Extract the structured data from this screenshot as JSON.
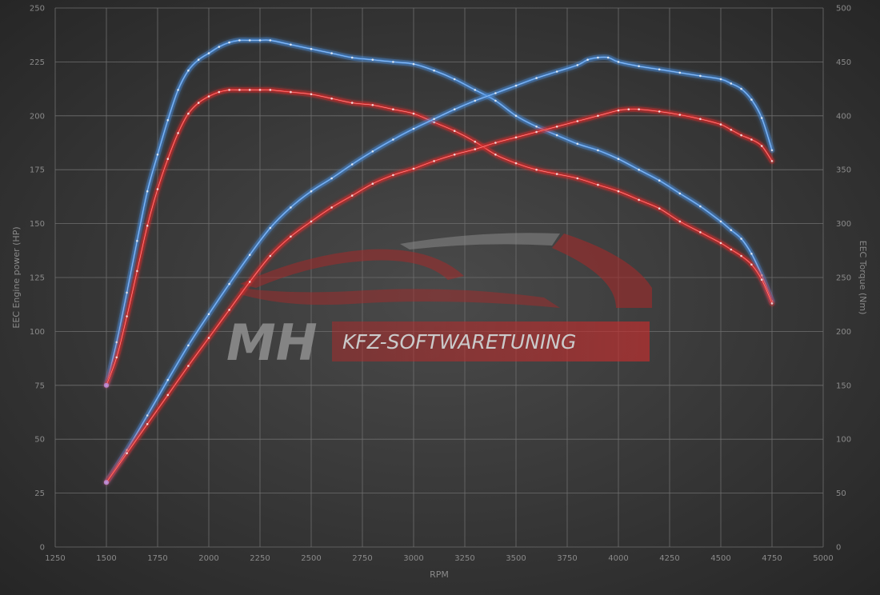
{
  "watermark": {
    "mark": "MH",
    "tagline": "KFZ-SOFTWARETUNING"
  },
  "colors": {
    "tuned": "#4a8fe0",
    "stock": "#e02a2a",
    "grid": "#6e6e6e",
    "text": "#8a8a8a"
  },
  "chart_data": {
    "type": "line",
    "xlabel": "RPM",
    "ylabel_left": "EEC Engine power (HP)",
    "ylabel_right": "EEC Torque (Nm)",
    "xlim": [
      1250,
      5000
    ],
    "x_ticks": [
      1250,
      1500,
      1750,
      2000,
      2250,
      2500,
      2750,
      3000,
      3250,
      3500,
      3750,
      4000,
      4250,
      4500,
      4750,
      5000
    ],
    "ylim_left": [
      0,
      250
    ],
    "y_ticks_left": [
      0,
      25,
      50,
      75,
      100,
      125,
      150,
      175,
      200,
      225,
      250
    ],
    "ylim_right": [
      0,
      500
    ],
    "y_ticks_right": [
      0,
      50,
      100,
      150,
      200,
      250,
      300,
      350,
      400,
      450,
      500
    ],
    "grid": true,
    "legend": "none",
    "series": [
      {
        "key": "tuned_power",
        "axis": "left",
        "color": "tuned",
        "x": [
          1500,
          1550,
          1600,
          1650,
          1700,
          1750,
          1800,
          1850,
          1900,
          1950,
          2000,
          2050,
          2100,
          2150,
          2200,
          2250,
          2300,
          2400,
          2500,
          2600,
          2700,
          2800,
          2900,
          3000,
          3100,
          3200,
          3300,
          3400,
          3500,
          3600,
          3700,
          3800,
          3900,
          4000,
          4100,
          4200,
          4300,
          4400,
          4500,
          4550,
          4600,
          4650,
          4700,
          4750
        ],
        "y": [
          75,
          95,
          118,
          142,
          165,
          182,
          198,
          212,
          221,
          226,
          229,
          232,
          234,
          235,
          235,
          235,
          235,
          233,
          231,
          229,
          227,
          226,
          225,
          224,
          221,
          217,
          212,
          207,
          200,
          195,
          191,
          187,
          184,
          180,
          175,
          170,
          164,
          158,
          151,
          147,
          143,
          136,
          126,
          114
        ]
      },
      {
        "key": "stock_power",
        "axis": "left",
        "color": "stock",
        "x": [
          1500,
          1550,
          1600,
          1650,
          1700,
          1750,
          1800,
          1850,
          1900,
          1950,
          2000,
          2050,
          2100,
          2150,
          2200,
          2250,
          2300,
          2400,
          2500,
          2600,
          2700,
          2800,
          2900,
          3000,
          3100,
          3200,
          3300,
          3400,
          3500,
          3600,
          3700,
          3800,
          3900,
          4000,
          4100,
          4200,
          4300,
          4400,
          4500,
          4550,
          4600,
          4650,
          4700,
          4750
        ],
        "y": [
          75,
          88,
          107,
          128,
          149,
          166,
          180,
          192,
          201,
          206,
          209,
          211,
          212,
          212,
          212,
          212,
          212,
          211,
          210,
          208,
          206,
          205,
          203,
          201,
          197,
          193,
          188,
          182,
          178,
          175,
          173,
          171,
          168,
          165,
          161,
          157,
          151,
          146,
          141,
          138,
          135,
          131,
          124,
          113
        ]
      },
      {
        "key": "tuned_torque",
        "axis": "right",
        "color": "tuned",
        "x": [
          1500,
          1600,
          1700,
          1800,
          1900,
          2000,
          2100,
          2200,
          2300,
          2400,
          2500,
          2600,
          2700,
          2800,
          2900,
          3000,
          3100,
          3200,
          3300,
          3400,
          3500,
          3600,
          3700,
          3800,
          3850,
          3900,
          3950,
          4000,
          4100,
          4200,
          4300,
          4400,
          4500,
          4550,
          4600,
          4650,
          4700,
          4750
        ],
        "y": [
          60,
          90,
          122,
          155,
          187,
          216,
          244,
          271,
          296,
          315,
          330,
          342,
          355,
          367,
          378,
          388,
          397,
          406,
          414,
          421,
          428,
          435,
          441,
          447,
          452,
          454,
          454,
          450,
          446,
          443,
          440,
          437,
          434,
          430,
          425,
          415,
          398,
          368
        ]
      },
      {
        "key": "stock_torque",
        "axis": "right",
        "color": "stock",
        "x": [
          1500,
          1600,
          1700,
          1800,
          1900,
          2000,
          2100,
          2200,
          2300,
          2400,
          2500,
          2600,
          2700,
          2800,
          2900,
          3000,
          3100,
          3200,
          3300,
          3400,
          3500,
          3600,
          3700,
          3800,
          3900,
          4000,
          4050,
          4100,
          4200,
          4300,
          4400,
          4500,
          4550,
          4600,
          4650,
          4700,
          4750
        ],
        "y": [
          60,
          87,
          114,
          141,
          168,
          194,
          220,
          246,
          270,
          288,
          302,
          315,
          326,
          337,
          345,
          351,
          358,
          364,
          369,
          375,
          380,
          385,
          390,
          395,
          400,
          405,
          406,
          406,
          404,
          401,
          397,
          392,
          387,
          382,
          378,
          372,
          358
        ]
      }
    ]
  }
}
